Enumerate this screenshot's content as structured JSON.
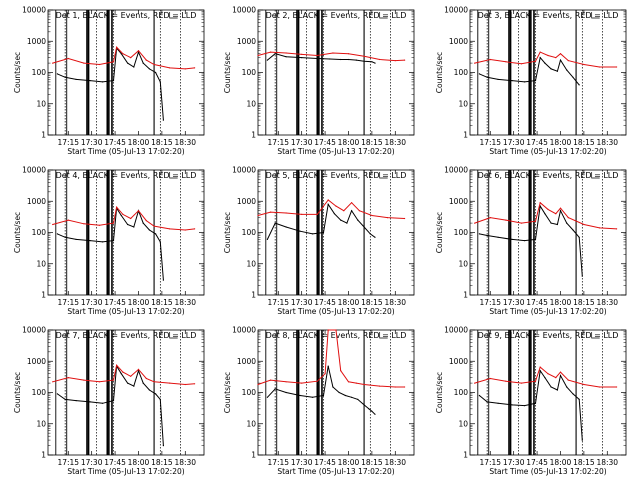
{
  "figure": {
    "ylabel": "Counts/sec",
    "xlabel": "Start Time (05-Jul-13 17:02:20)",
    "y_ticks": [
      "1",
      "10",
      "100",
      "1000",
      "10000"
    ],
    "x_ticks": [
      "17:15",
      "17:30",
      "17:45",
      "18:00",
      "18:15",
      "18:30"
    ],
    "colors": {
      "events": "#000000",
      "lld": "#e01010",
      "axes": "#000000"
    }
  },
  "chart_data": [
    {
      "type": "line",
      "title": "Det 1, BLACK = Events, RED = LLD",
      "ylim": [
        1,
        10000
      ],
      "xlim": [
        "17:02",
        "18:42"
      ],
      "series": [
        {
          "name": "Events",
          "x": [
            "17:08",
            "17:13",
            "17:20",
            "17:29",
            "17:37",
            "17:44",
            "17:46",
            "17:49",
            "17:53",
            "17:57",
            "18:00",
            "18:03",
            "18:07",
            "18:11",
            "18:14",
            "18:16"
          ],
          "values": [
            90,
            70,
            60,
            55,
            50,
            55,
            600,
            400,
            200,
            150,
            450,
            200,
            130,
            100,
            50,
            3
          ]
        },
        {
          "name": "LLD",
          "x": [
            "17:05",
            "17:15",
            "17:25",
            "17:35",
            "17:44",
            "17:46",
            "17:50",
            "17:55",
            "18:00",
            "18:05",
            "18:10",
            "18:20",
            "18:30",
            "18:36"
          ],
          "values": [
            200,
            280,
            200,
            180,
            220,
            650,
            400,
            300,
            500,
            250,
            180,
            140,
            130,
            140
          ]
        }
      ]
    },
    {
      "type": "line",
      "title": "Det 2, BLACK = Events, RED = LLD",
      "ylim": [
        1,
        10000
      ],
      "xlim": [
        "17:02",
        "18:42"
      ],
      "series": [
        {
          "name": "Events",
          "x": [
            "17:08",
            "17:13",
            "17:20",
            "17:30",
            "17:40",
            "17:48",
            "17:55",
            "18:00",
            "18:05",
            "18:10",
            "18:15",
            "18:17"
          ],
          "values": [
            250,
            400,
            320,
            300,
            280,
            270,
            260,
            260,
            250,
            230,
            220,
            200
          ]
        },
        {
          "name": "LLD",
          "x": [
            "17:02",
            "17:10",
            "17:20",
            "17:30",
            "17:40",
            "17:50",
            "18:00",
            "18:10",
            "18:20",
            "18:30",
            "18:36"
          ],
          "values": [
            350,
            450,
            420,
            380,
            350,
            420,
            400,
            330,
            260,
            240,
            250
          ]
        }
      ]
    },
    {
      "type": "line",
      "title": "Det 3, BLACK = Events, RED = LLD",
      "ylim": [
        1,
        10000
      ],
      "xlim": [
        "17:02",
        "18:42"
      ],
      "series": [
        {
          "name": "Events",
          "x": [
            "17:08",
            "17:13",
            "17:20",
            "17:29",
            "17:37",
            "17:44",
            "17:47",
            "17:50",
            "17:54",
            "17:58",
            "18:00",
            "18:04",
            "18:08",
            "18:12"
          ],
          "values": [
            90,
            70,
            60,
            55,
            50,
            55,
            300,
            200,
            130,
            110,
            250,
            120,
            70,
            40
          ]
        },
        {
          "name": "LLD",
          "x": [
            "17:05",
            "17:15",
            "17:25",
            "17:35",
            "17:44",
            "17:47",
            "17:52",
            "17:57",
            "18:00",
            "18:05",
            "18:15",
            "18:25",
            "18:36"
          ],
          "values": [
            200,
            260,
            220,
            190,
            230,
            450,
            350,
            300,
            400,
            240,
            180,
            150,
            150
          ]
        }
      ]
    },
    {
      "type": "line",
      "title": "Det 4, BLACK = Events, RED = LLD",
      "ylim": [
        1,
        10000
      ],
      "xlim": [
        "17:02",
        "18:42"
      ],
      "series": [
        {
          "name": "Events",
          "x": [
            "17:08",
            "17:13",
            "17:20",
            "17:29",
            "17:37",
            "17:44",
            "17:46",
            "17:49",
            "17:53",
            "17:57",
            "18:00",
            "18:03",
            "18:07",
            "18:11",
            "18:14",
            "18:16"
          ],
          "values": [
            90,
            70,
            60,
            55,
            50,
            55,
            600,
            350,
            180,
            150,
            500,
            200,
            120,
            90,
            50,
            3
          ]
        },
        {
          "name": "LLD",
          "x": [
            "17:05",
            "17:15",
            "17:25",
            "17:35",
            "17:44",
            "17:46",
            "17:50",
            "17:55",
            "18:00",
            "18:05",
            "18:10",
            "18:20",
            "18:30",
            "18:36"
          ],
          "values": [
            180,
            250,
            190,
            170,
            200,
            650,
            380,
            280,
            500,
            240,
            160,
            130,
            120,
            130
          ]
        }
      ]
    },
    {
      "type": "line",
      "title": "Det 5, BLACK = Events, RED = LLD",
      "ylim": [
        1,
        10000
      ],
      "xlim": [
        "17:02",
        "18:42"
      ],
      "series": [
        {
          "name": "Events",
          "x": [
            "17:08",
            "17:13",
            "17:20",
            "17:29",
            "17:37",
            "17:44",
            "17:47",
            "17:51",
            "17:55",
            "17:59",
            "18:02",
            "18:06",
            "18:10",
            "18:14",
            "18:17"
          ],
          "values": [
            60,
            200,
            150,
            110,
            90,
            100,
            800,
            400,
            250,
            200,
            500,
            250,
            150,
            90,
            70
          ]
        },
        {
          "name": "LLD",
          "x": [
            "17:02",
            "17:10",
            "17:20",
            "17:30",
            "17:40",
            "17:47",
            "17:52",
            "17:57",
            "18:02",
            "18:07",
            "18:15",
            "18:25",
            "18:36"
          ],
          "values": [
            350,
            450,
            420,
            380,
            380,
            1100,
            700,
            500,
            900,
            500,
            350,
            300,
            280
          ]
        }
      ]
    },
    {
      "type": "line",
      "title": "Det 6, BLACK = Events, RED = LLD",
      "ylim": [
        1,
        10000
      ],
      "xlim": [
        "17:02",
        "18:42"
      ],
      "series": [
        {
          "name": "Events",
          "x": [
            "17:08",
            "17:13",
            "17:20",
            "17:29",
            "17:37",
            "17:44",
            "17:47",
            "17:50",
            "17:54",
            "17:58",
            "18:00",
            "18:04",
            "18:08",
            "18:12",
            "18:14"
          ],
          "values": [
            90,
            80,
            70,
            60,
            55,
            60,
            700,
            400,
            200,
            180,
            500,
            200,
            120,
            70,
            4
          ]
        },
        {
          "name": "LLD",
          "x": [
            "17:05",
            "17:15",
            "17:25",
            "17:35",
            "17:44",
            "17:47",
            "17:52",
            "17:57",
            "18:00",
            "18:05",
            "18:15",
            "18:25",
            "18:36"
          ],
          "values": [
            200,
            300,
            250,
            200,
            230,
            900,
            550,
            400,
            600,
            300,
            180,
            140,
            130
          ]
        }
      ]
    },
    {
      "type": "line",
      "title": "Det 7, BLACK = Events, RED = LLD",
      "ylim": [
        1,
        10000
      ],
      "xlim": [
        "17:02",
        "18:42"
      ],
      "series": [
        {
          "name": "Events",
          "x": [
            "17:08",
            "17:13",
            "17:20",
            "17:29",
            "17:37",
            "17:44",
            "17:46",
            "17:49",
            "17:53",
            "17:57",
            "18:00",
            "18:03",
            "18:07",
            "18:11",
            "18:14",
            "18:16"
          ],
          "values": [
            90,
            60,
            55,
            50,
            45,
            55,
            700,
            400,
            200,
            160,
            500,
            200,
            120,
            90,
            60,
            2
          ]
        },
        {
          "name": "LLD",
          "x": [
            "17:05",
            "17:15",
            "17:25",
            "17:35",
            "17:44",
            "17:46",
            "17:50",
            "17:55",
            "18:00",
            "18:05",
            "18:10",
            "18:20",
            "18:30",
            "18:36"
          ],
          "values": [
            220,
            300,
            250,
            220,
            250,
            750,
            450,
            330,
            550,
            280,
            220,
            200,
            180,
            190
          ]
        }
      ]
    },
    {
      "type": "line",
      "title": "Det 8, BLACK = Events, RED = LLD",
      "ylim": [
        1,
        10000
      ],
      "xlim": [
        "17:02",
        "18:42"
      ],
      "series": [
        {
          "name": "Events",
          "x": [
            "17:08",
            "17:13",
            "17:20",
            "17:29",
            "17:37",
            "17:44",
            "17:47",
            "17:50",
            "17:54",
            "17:58",
            "18:02",
            "18:06",
            "18:10",
            "18:13",
            "18:15",
            "18:17"
          ],
          "values": [
            70,
            130,
            100,
            80,
            70,
            80,
            700,
            150,
            100,
            80,
            70,
            60,
            40,
            30,
            25,
            20
          ]
        },
        {
          "name": "LLD",
          "x": [
            "17:02",
            "17:10",
            "17:20",
            "17:30",
            "17:40",
            "17:45",
            "17:47",
            "17:52",
            "17:55",
            "18:00",
            "18:05",
            "18:10",
            "18:20",
            "18:30",
            "18:36"
          ],
          "values": [
            180,
            250,
            220,
            200,
            230,
            400,
            10000,
            10000,
            500,
            220,
            200,
            180,
            160,
            150,
            150
          ]
        }
      ]
    },
    {
      "type": "line",
      "title": "Det 9, BLACK = Events, RED = LLD",
      "ylim": [
        1,
        10000
      ],
      "xlim": [
        "17:02",
        "18:42"
      ],
      "series": [
        {
          "name": "Events",
          "x": [
            "17:08",
            "17:13",
            "17:20",
            "17:29",
            "17:37",
            "17:44",
            "17:47",
            "17:50",
            "17:54",
            "17:58",
            "18:00",
            "18:04",
            "18:08",
            "18:12",
            "18:14"
          ],
          "values": [
            80,
            50,
            45,
            40,
            38,
            45,
            500,
            300,
            150,
            120,
            350,
            150,
            90,
            60,
            3
          ]
        },
        {
          "name": "LLD",
          "x": [
            "17:05",
            "17:15",
            "17:25",
            "17:35",
            "17:44",
            "17:47",
            "17:52",
            "17:57",
            "18:00",
            "18:05",
            "18:15",
            "18:25",
            "18:36"
          ],
          "values": [
            200,
            280,
            230,
            200,
            230,
            650,
            400,
            300,
            450,
            250,
            180,
            150,
            150
          ]
        }
      ]
    }
  ]
}
